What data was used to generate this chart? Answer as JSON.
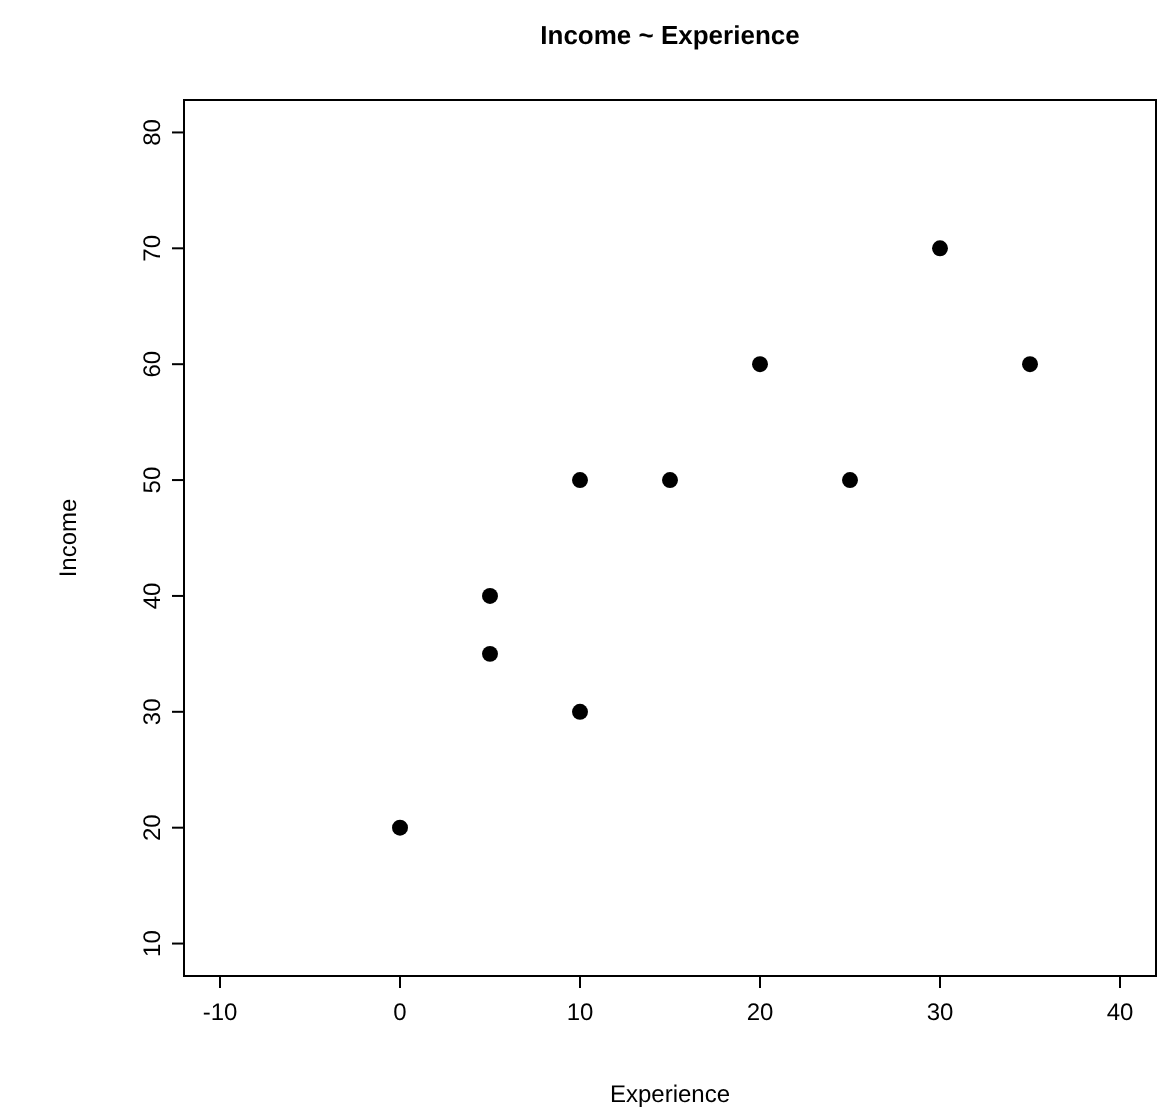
{
  "chart_data": {
    "type": "scatter",
    "title": "Income ~ Experience",
    "xlabel": "Experience",
    "ylabel": "Income",
    "x": [
      0,
      5,
      5,
      10,
      10,
      15,
      20,
      25,
      30,
      35
    ],
    "values": [
      20,
      35,
      40,
      30,
      50,
      50,
      60,
      50,
      70,
      60
    ],
    "color": "#000000",
    "marker": "circle",
    "xlim": [
      -12,
      42
    ],
    "xticks": [
      -10,
      0,
      10,
      20,
      30,
      40
    ],
    "ylim": [
      7.2,
      82.8
    ],
    "yticks": [
      10,
      20,
      30,
      40,
      50,
      60,
      70,
      80
    ],
    "grid": false
  }
}
